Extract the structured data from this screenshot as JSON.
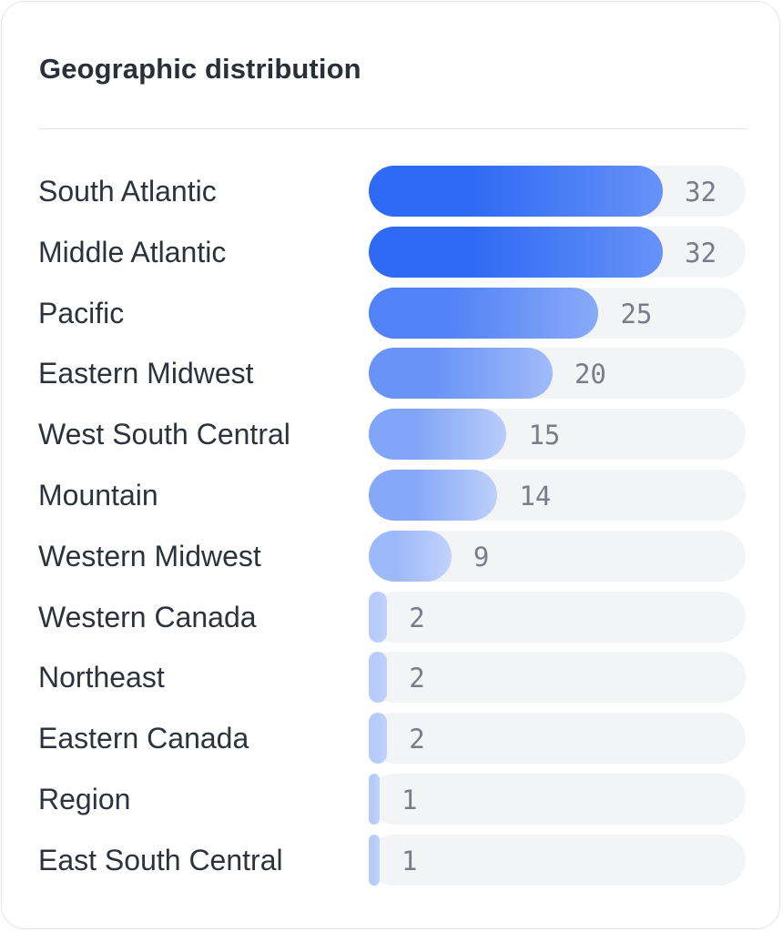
{
  "chart_data": {
    "type": "bar",
    "orientation": "horizontal",
    "title": "Geographic distribution",
    "categories": [
      "South Atlantic",
      "Middle Atlantic",
      "Pacific",
      "Eastern Midwest",
      "West South Central",
      "Mountain",
      "Western Midwest",
      "Western Canada",
      "Northeast",
      "Eastern Canada",
      "Region",
      "East South Central"
    ],
    "values": [
      32,
      32,
      25,
      20,
      15,
      14,
      9,
      2,
      2,
      2,
      1,
      1
    ],
    "xlim": [
      0,
      41
    ],
    "grid": false,
    "data_labels": true
  },
  "colors": {
    "bar_strong": "#2f6af4",
    "bar_light": "#c2d3fb",
    "track": "#f3f4f6",
    "label_text": "#2e323d",
    "value_text": "#787d87"
  }
}
